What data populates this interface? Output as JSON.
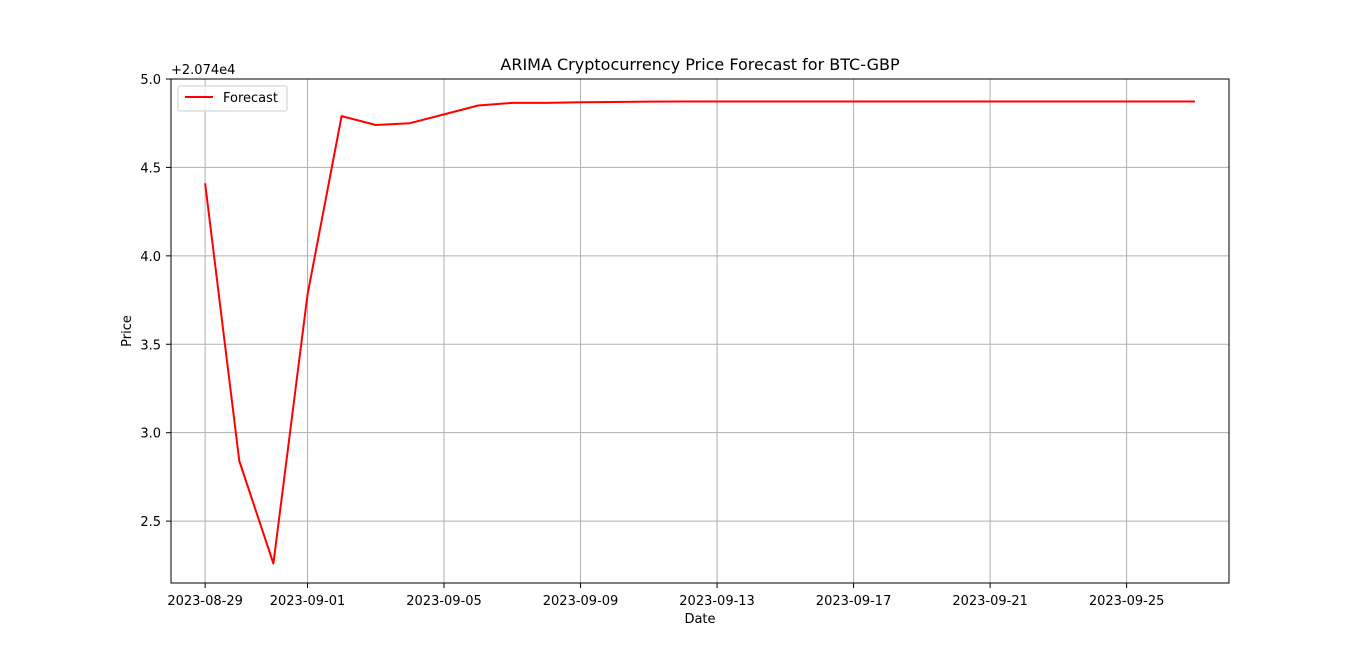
{
  "chart_data": {
    "type": "line",
    "title": "ARIMA Cryptocurrency Price Forecast for BTC-GBP",
    "xlabel": "Date",
    "ylabel": "Price",
    "y_offset_text": "+2.074e4",
    "y_offset": 20740,
    "ylim": [
      20742.15,
      20745.0
    ],
    "xlim": [
      "2023-08-28",
      "2023-09-28"
    ],
    "grid": true,
    "legend_position": "top-left",
    "x_ticks": [
      "2023-08-29",
      "2023-09-01",
      "2023-09-05",
      "2023-09-09",
      "2023-09-13",
      "2023-09-17",
      "2023-09-21",
      "2023-09-25"
    ],
    "y_ticks": [
      "2.5",
      "3.0",
      "3.5",
      "4.0",
      "4.5",
      "5.0"
    ],
    "y_tick_values": [
      20742.5,
      20743.0,
      20743.5,
      20744.0,
      20744.5,
      20745.0
    ],
    "series": [
      {
        "name": "Forecast",
        "color": "#ff0000",
        "x": [
          "2023-08-29",
          "2023-08-30",
          "2023-08-31",
          "2023-09-01",
          "2023-09-02",
          "2023-09-03",
          "2023-09-04",
          "2023-09-05",
          "2023-09-06",
          "2023-09-07",
          "2023-09-08",
          "2023-09-09",
          "2023-09-10",
          "2023-09-11",
          "2023-09-12",
          "2023-09-13",
          "2023-09-14",
          "2023-09-15",
          "2023-09-16",
          "2023-09-17",
          "2023-09-18",
          "2023-09-19",
          "2023-09-20",
          "2023-09-21",
          "2023-09-22",
          "2023-09-23",
          "2023-09-24",
          "2023-09-25",
          "2023-09-26",
          "2023-09-27"
        ],
        "values": [
          20744.41,
          20742.84,
          20742.26,
          20743.78,
          20744.79,
          20744.74,
          20744.75,
          20744.8,
          20744.85,
          20744.865,
          20744.865,
          20744.868,
          20744.87,
          20744.872,
          20744.873,
          20744.873,
          20744.873,
          20744.873,
          20744.873,
          20744.873,
          20744.873,
          20744.873,
          20744.873,
          20744.873,
          20744.873,
          20744.873,
          20744.873,
          20744.873,
          20744.873,
          20744.873
        ]
      }
    ]
  }
}
